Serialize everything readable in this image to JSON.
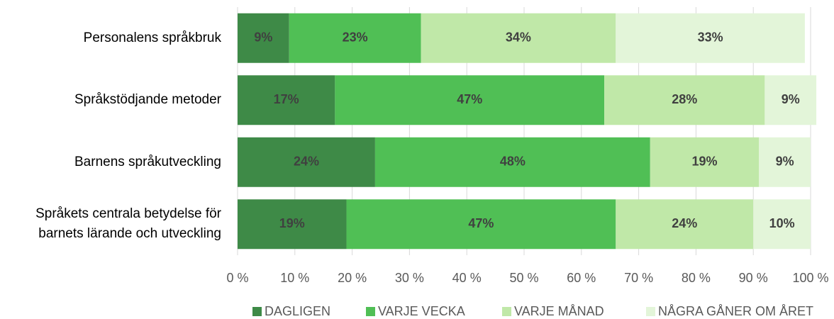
{
  "chart_data": {
    "type": "bar",
    "orientation": "horizontal",
    "stacked": true,
    "categories": [
      "Personalens språkbruk",
      "Språkstödjande metoder",
      "Barnens språkutveckling",
      "Språkets centrala betydelse för\nbarnets lärande och utveckling"
    ],
    "series": [
      {
        "name": "DAGLIGEN",
        "color": "#3e8a47",
        "values": [
          9,
          17,
          24,
          19
        ],
        "value_labels": [
          "9%",
          "17%",
          "24%",
          "19%"
        ]
      },
      {
        "name": "VARJE VECKA",
        "color": "#50bf55",
        "values": [
          23,
          47,
          48,
          47
        ],
        "value_labels": [
          "23%",
          "47%",
          "48%",
          "47%"
        ]
      },
      {
        "name": "VARJE MÅNAD",
        "color": "#c0e8a8",
        "values": [
          34,
          28,
          19,
          24
        ],
        "value_labels": [
          "34%",
          "28%",
          "19%",
          "24%"
        ]
      },
      {
        "name": "NÅGRA GÅNER OM ÅRET",
        "color": "#e3f5d9",
        "values": [
          33,
          9,
          9,
          10
        ],
        "value_labels": [
          "33%",
          "9%",
          "9%",
          "10%"
        ]
      }
    ],
    "xlim": [
      0,
      100
    ],
    "xticks": [
      {
        "value": 0,
        "label": "0 %"
      },
      {
        "value": 10,
        "label": "10 %"
      },
      {
        "value": 20,
        "label": "20 %"
      },
      {
        "value": 30,
        "label": "30 %"
      },
      {
        "value": 40,
        "label": "40 %"
      },
      {
        "value": 50,
        "label": "50 %"
      },
      {
        "value": 60,
        "label": "60 %"
      },
      {
        "value": 70,
        "label": "70 %"
      },
      {
        "value": 80,
        "label": "80 %"
      },
      {
        "value": 90,
        "label": "90 %"
      },
      {
        "value": 100,
        "label": "100 %"
      }
    ],
    "grid": true,
    "legend": "bottom"
  }
}
